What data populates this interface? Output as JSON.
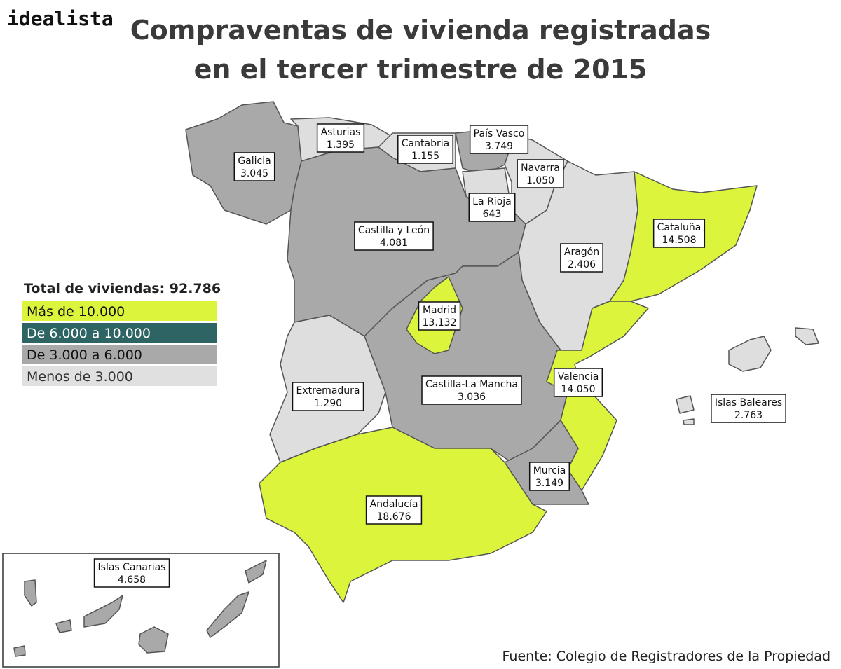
{
  "logo": "idealista",
  "title": [
    "Compraventas de vivienda registradas",
    "en el tercer trimestre de 2015"
  ],
  "legend": {
    "total": "Total de viviendas: 92.786",
    "items": [
      "Más de 10.000",
      "De 6.000  a 10.000",
      "De 3.000 a 6.000",
      "Menos de 3.000"
    ]
  },
  "regions": [
    {
      "name": "Asturias",
      "value": "1.395"
    },
    {
      "name": "Cantabria",
      "value": "1.155"
    },
    {
      "name": "País Vasco",
      "value": "3.749"
    },
    {
      "name": "Galicia",
      "value": "3.045"
    },
    {
      "name": "Navarra",
      "value": "1.050"
    },
    {
      "name": "La Rioja",
      "value": "643"
    },
    {
      "name": "Castilla y León",
      "value": "4.081"
    },
    {
      "name": "Cataluña",
      "value": "14.508"
    },
    {
      "name": "Aragón",
      "value": "2.406"
    },
    {
      "name": "Madrid",
      "value": "13.132"
    },
    {
      "name": "Extremadura",
      "value": "1.290"
    },
    {
      "name": "Castilla-La Mancha",
      "value": "3.036"
    },
    {
      "name": "Valencia",
      "value": "14.050"
    },
    {
      "name": "Islas Baleares",
      "value": "2.763"
    },
    {
      "name": "Murcia",
      "value": "3.149"
    },
    {
      "name": "Andalucía",
      "value": "18.676"
    },
    {
      "name": "Islas Canarias",
      "value": "4.658"
    }
  ],
  "source": "Fuente: Colegio de Registradores de la Propiedad"
}
